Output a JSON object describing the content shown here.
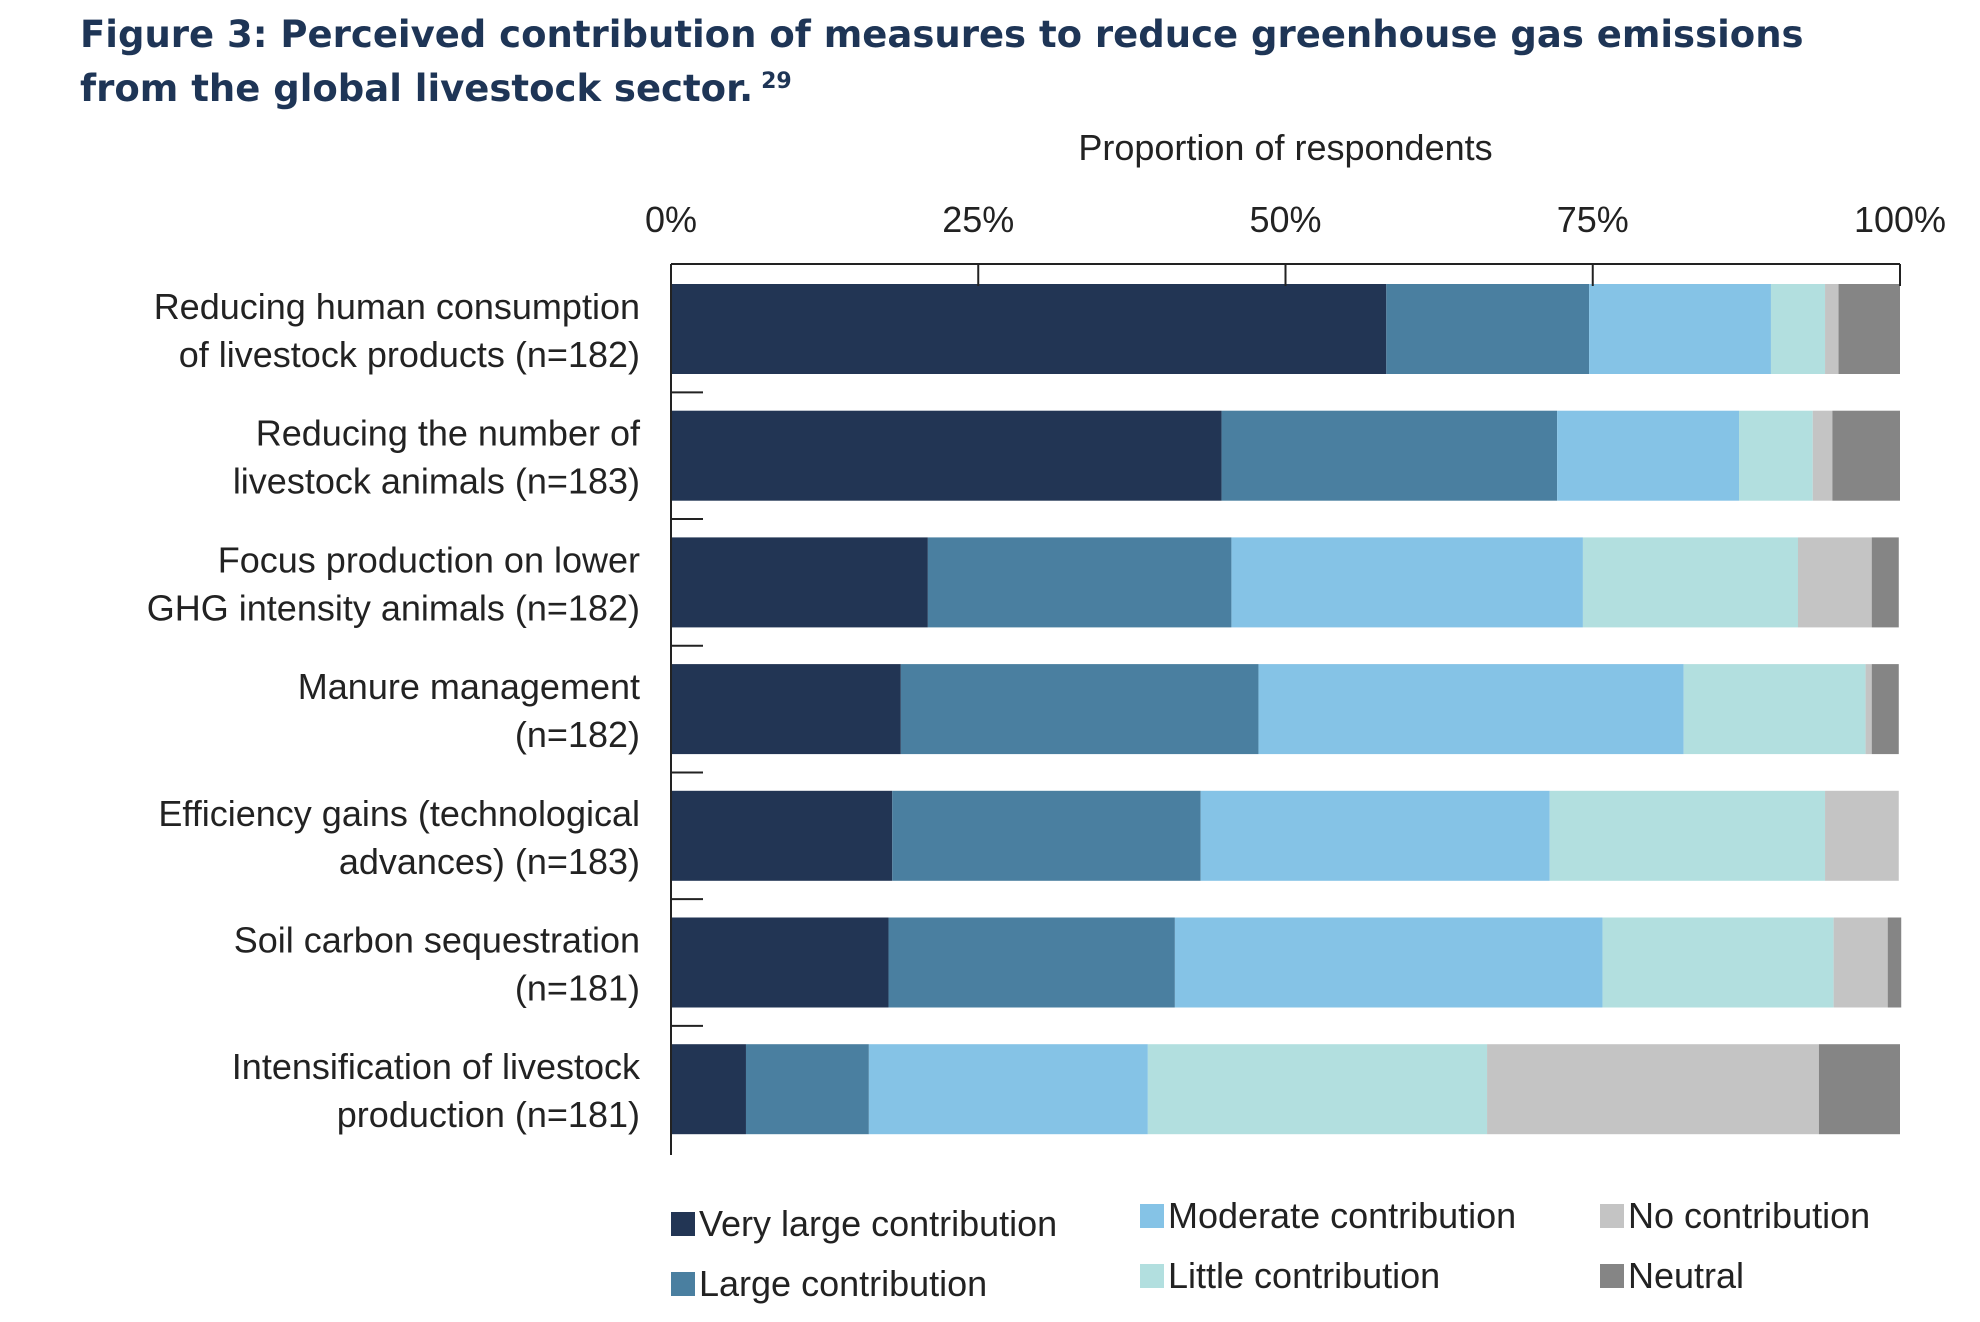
{
  "title": {
    "line1": "Figure 3: Perceived contribution of measures to reduce greenhouse gas emissions",
    "line2": "from the global livestock sector.",
    "footnote": "29"
  },
  "chart_data": {
    "type": "bar",
    "orientation": "horizontal",
    "stacked": true,
    "xlabel": "Proportion of respondents",
    "ylabel": "",
    "xlim": [
      0,
      100
    ],
    "ticks": [
      "0%",
      "25%",
      "50%",
      "75%",
      "100%"
    ],
    "tick_values": [
      0,
      25,
      50,
      75,
      100
    ],
    "legend_position": "bottom",
    "categories": [
      [
        "Reducing human consumption",
        "of livestock products (n=182)"
      ],
      [
        "Reducing the number of",
        "livestock animals (n=183)"
      ],
      [
        "Focus production on lower",
        "GHG intensity animals (n=182)"
      ],
      [
        "Manure management",
        "(n=182)"
      ],
      [
        "Efficiency gains (technological",
        "advances) (n=183)"
      ],
      [
        "Soil carbon sequestration",
        "(n=181)"
      ],
      [
        "Intensification of livestock",
        "production (n=181)"
      ]
    ],
    "series": [
      {
        "name": "Very large contribution",
        "color": "#223554",
        "values": [
          58.2,
          44.8,
          20.9,
          18.7,
          18.0,
          17.7,
          6.1
        ]
      },
      {
        "name": "Large contribution",
        "color": "#4a7fa0",
        "values": [
          16.5,
          27.3,
          24.7,
          29.1,
          25.1,
          23.3,
          10.0
        ]
      },
      {
        "name": "Moderate contribution",
        "color": "#85c3e6",
        "values": [
          14.8,
          14.8,
          28.6,
          34.6,
          28.4,
          34.8,
          22.7
        ]
      },
      {
        "name": "Little contribution",
        "color": "#b2dfdf",
        "values": [
          4.4,
          6.0,
          17.5,
          14.8,
          22.4,
          18.8,
          27.6
        ]
      },
      {
        "name": "No contribution",
        "color": "#c4c4c4",
        "values": [
          1.1,
          1.6,
          6.0,
          0.5,
          6.0,
          4.4,
          27.0
        ]
      },
      {
        "name": "Neutral",
        "color": "#858585",
        "values": [
          5.0,
          5.5,
          2.2,
          2.2,
          0.0,
          1.1,
          6.6
        ]
      }
    ]
  }
}
